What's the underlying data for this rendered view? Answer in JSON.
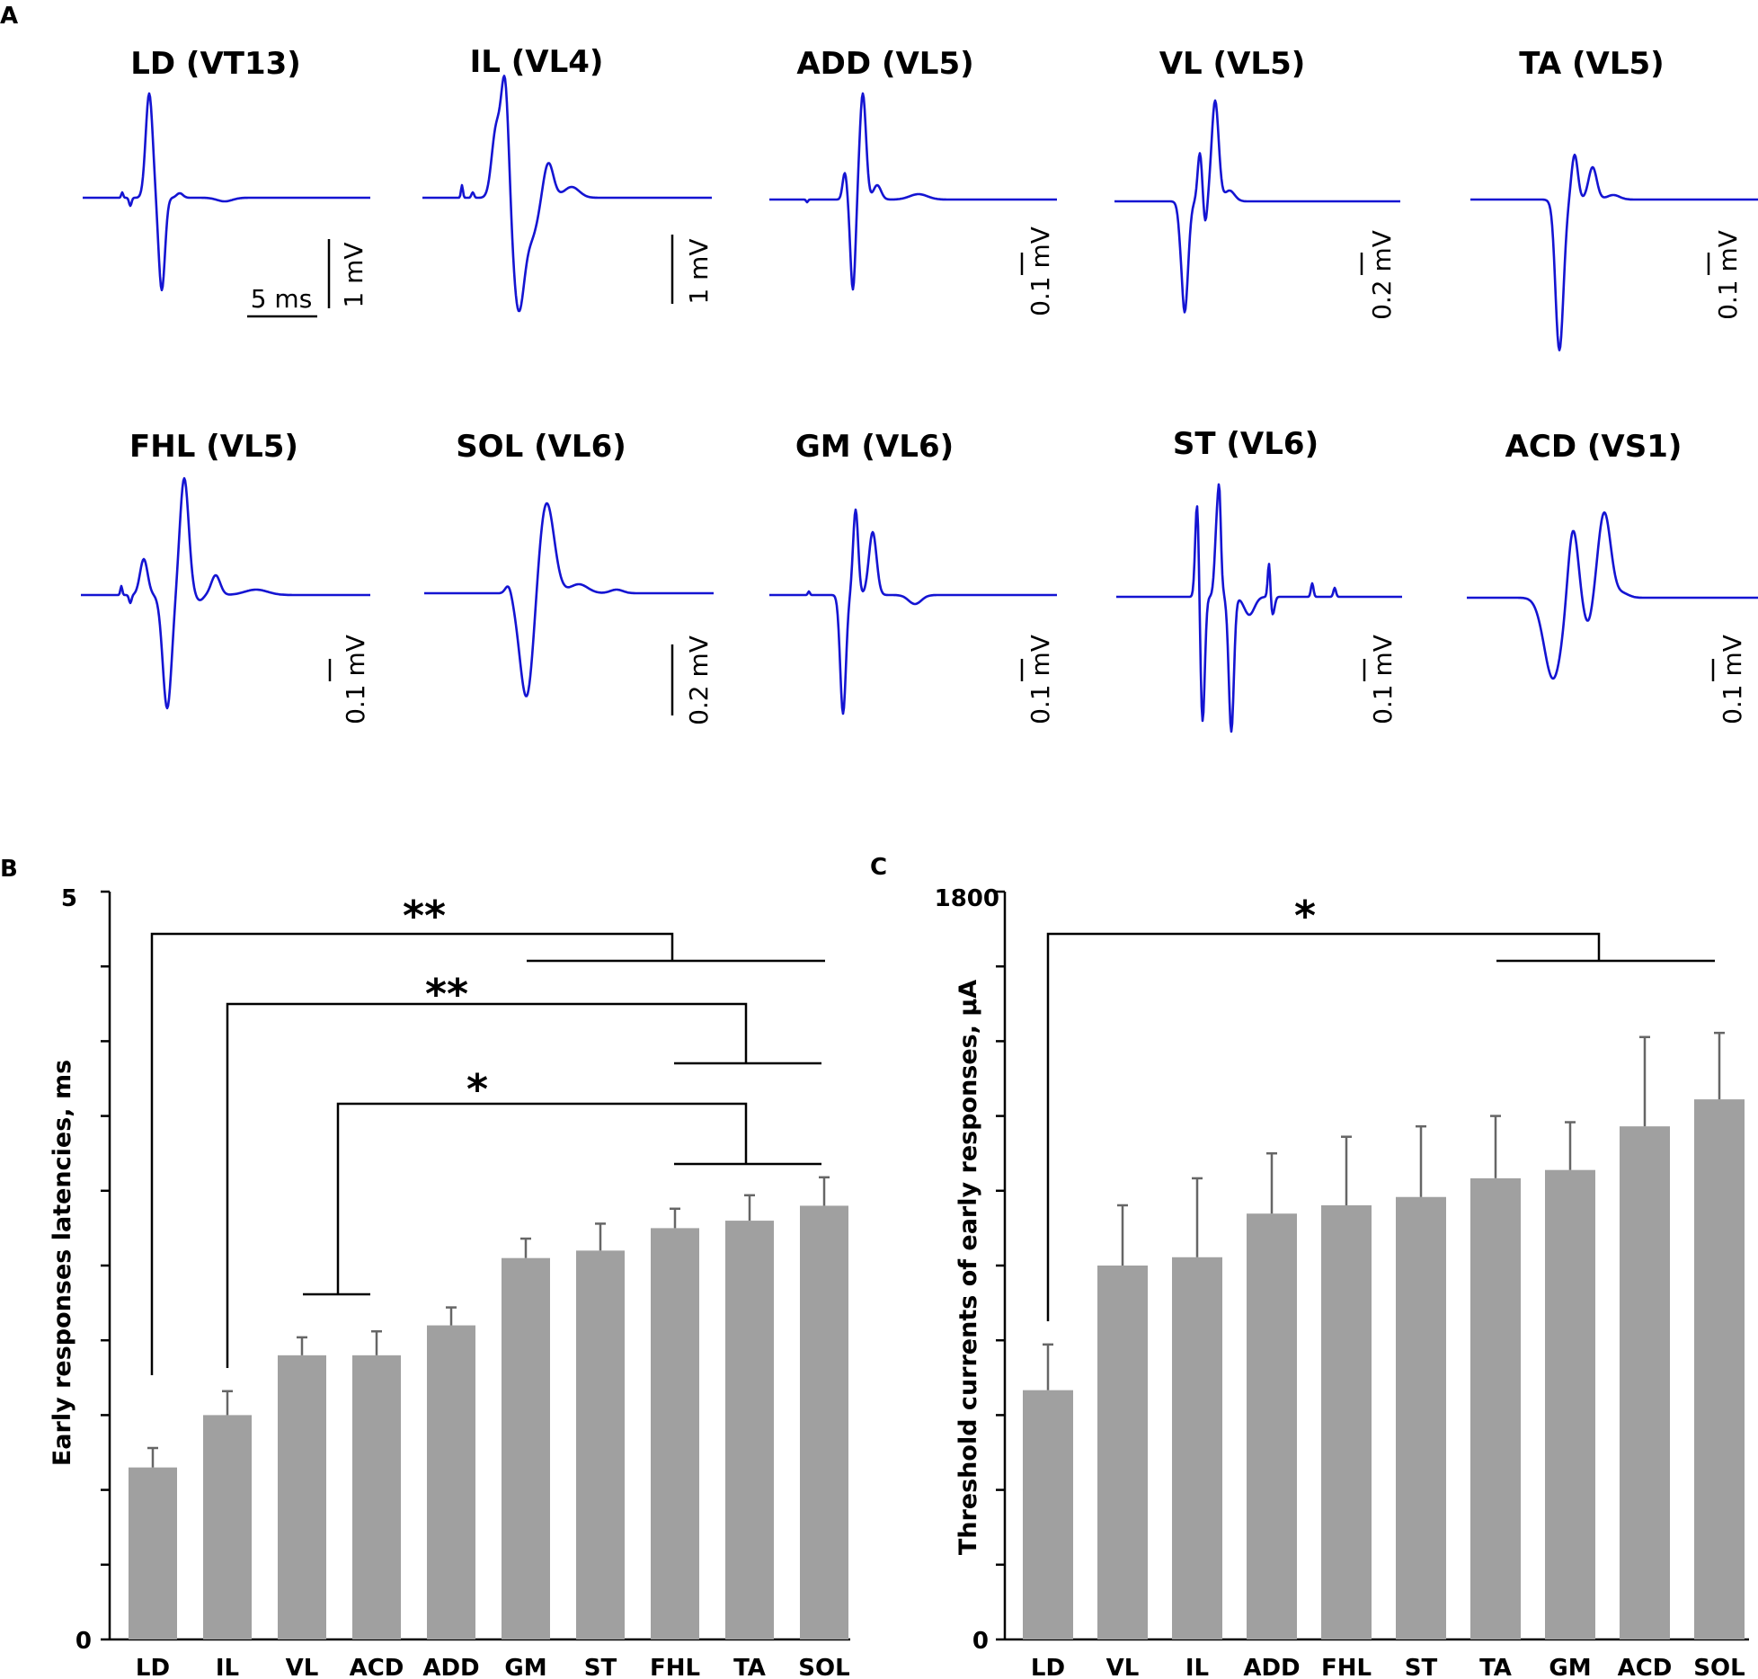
{
  "panel_labels": {
    "a": "A",
    "b": "B",
    "c": "C"
  },
  "trace_color": "#1414d2",
  "bar_color": "#a0a0a0",
  "chart_data": [
    {
      "type": "line",
      "panel": "A",
      "units": {
        "time": "ms",
        "amplitude": "mV"
      },
      "time_scalebar": "5 ms",
      "traces": [
        {
          "title": "LD (VT13)",
          "amp_scalebar": "1 mV"
        },
        {
          "title": "IL (VL4)",
          "amp_scalebar": "1 mV"
        },
        {
          "title": "ADD (VL5)",
          "amp_scalebar": "0.1 mV"
        },
        {
          "title": "VL (VL5)",
          "amp_scalebar": "0.2 mV"
        },
        {
          "title": "TA (VL5)",
          "amp_scalebar": "0.1 mV"
        },
        {
          "title": "FHL (VL5)",
          "amp_scalebar": "0.1 mV"
        },
        {
          "title": "SOL (VL6)",
          "amp_scalebar": "0.2 mV"
        },
        {
          "title": "GM (VL6)",
          "amp_scalebar": "0.1 mV"
        },
        {
          "title": "ST (VL6)",
          "amp_scalebar": "0.1 mV"
        },
        {
          "title": "ACD (VS1)",
          "amp_scalebar": "0.1 mV"
        }
      ]
    },
    {
      "type": "bar",
      "panel": "B",
      "categories": [
        "LD",
        "IL",
        "VL",
        "ACD",
        "ADD",
        "GM",
        "ST",
        "FHL",
        "TA",
        "SOL"
      ],
      "values": [
        1.15,
        1.5,
        1.9,
        1.9,
        2.1,
        2.55,
        2.6,
        2.75,
        2.8,
        2.9
      ],
      "errors": [
        0.13,
        0.16,
        0.12,
        0.16,
        0.12,
        0.13,
        0.18,
        0.13,
        0.17,
        0.19
      ],
      "ylabel": "Early responses latencies, ms",
      "ylim": [
        0,
        5
      ],
      "yticks": [
        "0",
        "5"
      ],
      "significance": [
        "**",
        "**",
        "*"
      ]
    },
    {
      "type": "bar",
      "panel": "C",
      "categories": [
        "LD",
        "VL",
        "IL",
        "ADD",
        "FHL",
        "ST",
        "TA",
        "GM",
        "ACD",
        "SOL"
      ],
      "values": [
        600,
        900,
        920,
        1025,
        1045,
        1065,
        1110,
        1130,
        1235,
        1300
      ],
      "errors": [
        110,
        145,
        190,
        145,
        165,
        170,
        150,
        115,
        215,
        160
      ],
      "ylabel": "Threshold currents of early responses, µA",
      "ylim": [
        0,
        1800
      ],
      "yticks": [
        "0",
        "1800"
      ],
      "significance": [
        "*"
      ]
    }
  ]
}
